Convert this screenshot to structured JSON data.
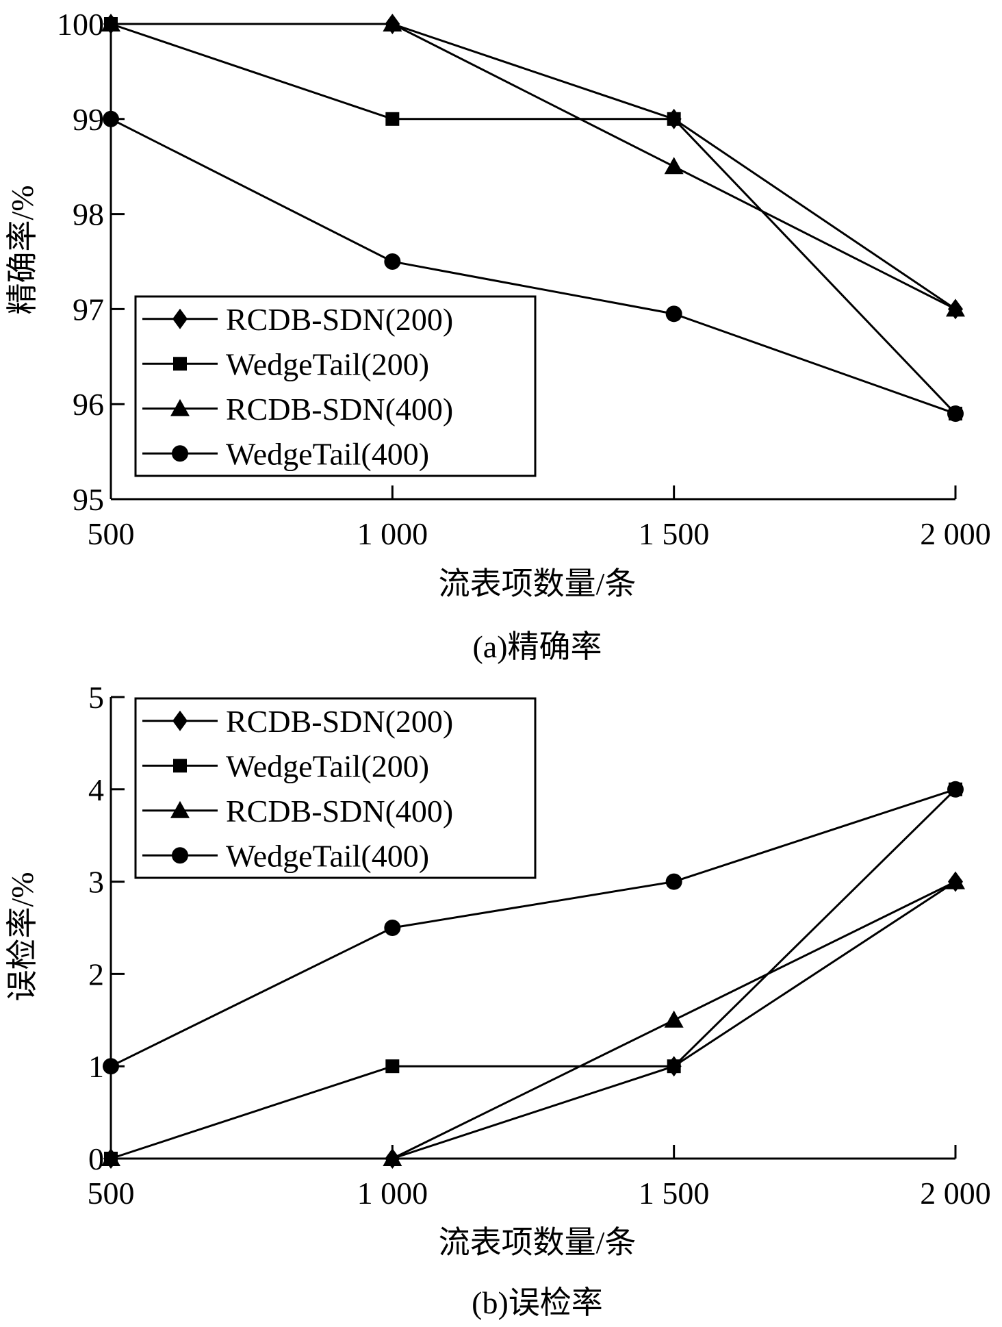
{
  "chart_data": [
    {
      "type": "line",
      "caption": "(a)精确率",
      "xlabel": "流表项数量/条",
      "ylabel": "精确率/%",
      "x": [
        500,
        1000,
        1500,
        2000
      ],
      "x_tick_labels": [
        "500",
        "1 000",
        "1 500",
        "2 000"
      ],
      "ylim": [
        95,
        100
      ],
      "y_ticks": [
        95,
        96,
        97,
        98,
        99,
        100
      ],
      "grid": false,
      "legend_position": "bottom-left",
      "series": [
        {
          "name": "RCDB-SDN(200)",
          "marker": "diamond",
          "values": [
            100,
            100,
            99,
            97
          ]
        },
        {
          "name": "WedgeTail(200)",
          "marker": "square",
          "values": [
            100,
            99,
            99,
            95.9
          ]
        },
        {
          "name": "RCDB-SDN(400)",
          "marker": "triangle",
          "values": [
            100,
            100,
            98.5,
            97
          ]
        },
        {
          "name": "WedgeTail(400)",
          "marker": "circle",
          "values": [
            99,
            97.5,
            96.95,
            95.9
          ]
        }
      ]
    },
    {
      "type": "line",
      "caption": "(b)误检率",
      "xlabel": "流表项数量/条",
      "ylabel": "误检率/%",
      "x": [
        500,
        1000,
        1500,
        2000
      ],
      "x_tick_labels": [
        "500",
        "1 000",
        "1 500",
        "2 000"
      ],
      "ylim": [
        0,
        5
      ],
      "y_ticks": [
        0,
        1,
        2,
        3,
        4,
        5
      ],
      "grid": false,
      "legend_position": "top-left",
      "series": [
        {
          "name": "RCDB-SDN(200)",
          "marker": "diamond",
          "values": [
            0,
            0,
            1,
            3
          ]
        },
        {
          "name": "WedgeTail(200)",
          "marker": "square",
          "values": [
            0,
            1,
            1,
            4
          ]
        },
        {
          "name": "RCDB-SDN(400)",
          "marker": "triangle",
          "values": [
            0,
            0,
            1.5,
            3
          ]
        },
        {
          "name": "WedgeTail(400)",
          "marker": "circle",
          "values": [
            1,
            2.5,
            3,
            4
          ]
        }
      ]
    }
  ]
}
